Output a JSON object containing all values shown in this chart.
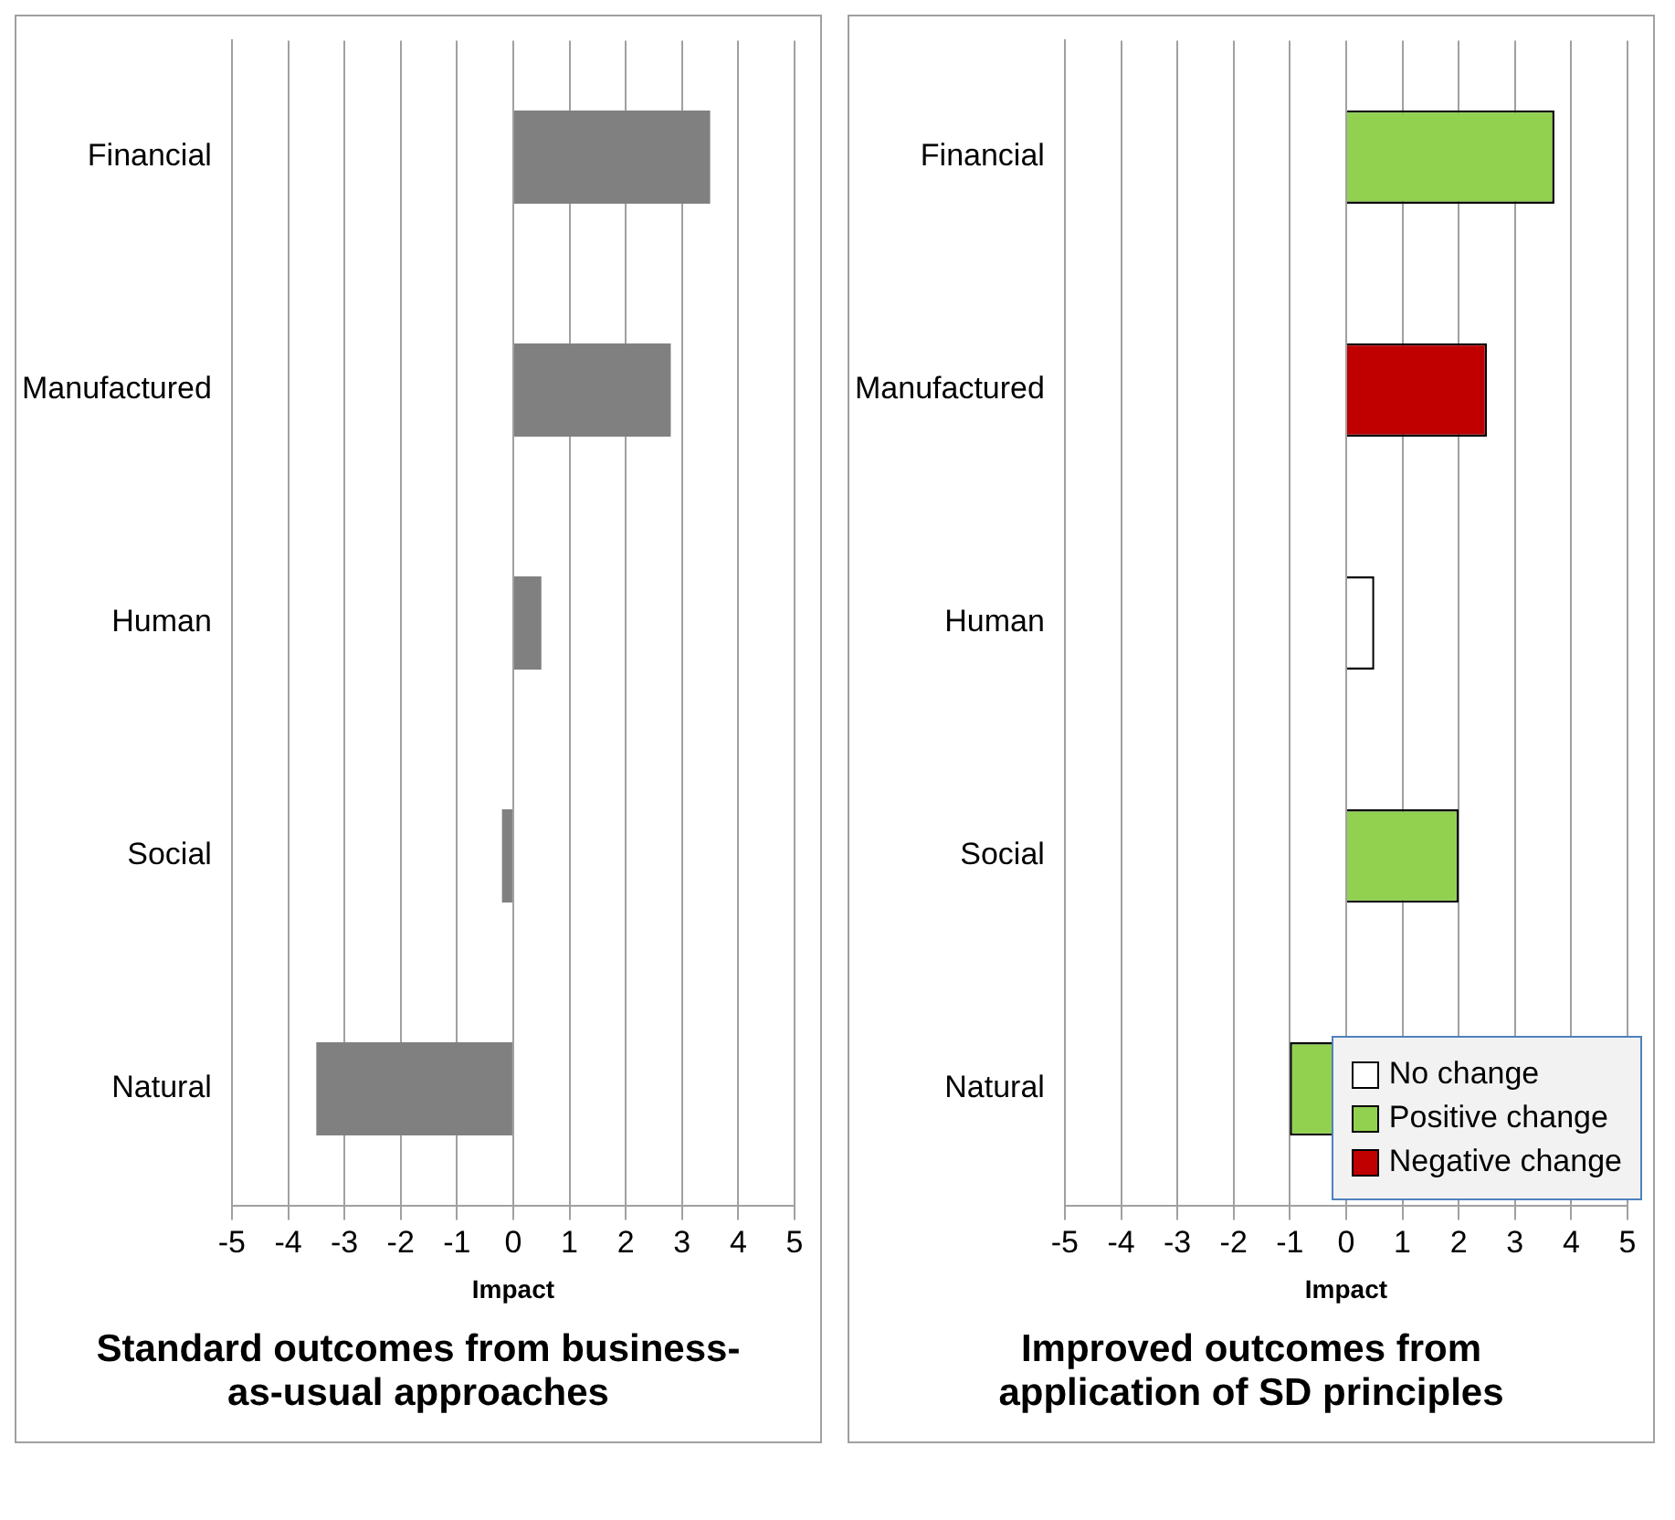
{
  "chart_data": [
    {
      "type": "bar",
      "orientation": "horizontal",
      "title": "Standard outcomes from business-as-usual approaches",
      "xlabel": "Impact",
      "categories": [
        "Financial",
        "Manufactured",
        "Human",
        "Social",
        "Natural"
      ],
      "series": [
        {
          "color": "#808080",
          "values": [
            3.5,
            2.8,
            0.5,
            -0.2,
            -3.5
          ]
        }
      ],
      "xlim": [
        -5,
        5
      ],
      "xticks": [
        -5,
        -4,
        -3,
        -2,
        -1,
        0,
        1,
        2,
        3,
        4,
        5
      ],
      "grid": "x",
      "legend": false
    },
    {
      "type": "bar",
      "orientation": "horizontal",
      "stacked": true,
      "title": "Improved outcomes from application of SD principles",
      "xlabel": "Impact",
      "categories": [
        "Financial",
        "Manufactured",
        "Human",
        "Social",
        "Natural"
      ],
      "series": [
        {
          "name": "No change",
          "color": "#ffffff",
          "values": [
            null,
            null,
            0.5,
            null,
            null
          ]
        },
        {
          "name": "Positive change",
          "color": "#92d050",
          "values": [
            3.7,
            null,
            null,
            2.0,
            -1.0
          ]
        },
        {
          "name": "Negative change",
          "color": "#c00000",
          "values": [
            null,
            2.5,
            null,
            null,
            null
          ]
        }
      ],
      "xlim": [
        -5,
        5
      ],
      "xticks": [
        -5,
        -4,
        -3,
        -2,
        -1,
        0,
        1,
        2,
        3,
        4,
        5
      ],
      "grid": "x",
      "legend": "bottom right"
    }
  ]
}
